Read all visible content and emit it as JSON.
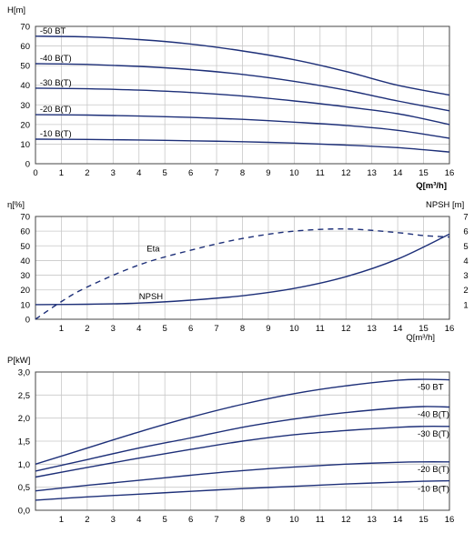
{
  "chart_data": [
    {
      "type": "line",
      "xlabel": "Q[m³/h]",
      "ylabel": "H[m]",
      "xlim": [
        0,
        16
      ],
      "ylim": [
        0,
        70
      ],
      "xticks": [
        "0",
        "1",
        "2",
        "3",
        "4",
        "5",
        "6",
        "7",
        "8",
        "9",
        "10",
        "11",
        "12",
        "13",
        "14",
        "15",
        "16"
      ],
      "yticks": [
        "0",
        "10",
        "20",
        "30",
        "40",
        "50",
        "60",
        "70"
      ],
      "grid": true,
      "series": [
        {
          "name": "-50 BT",
          "x": [
            0,
            2,
            4,
            6,
            8,
            10,
            12,
            14,
            16
          ],
          "values": [
            65,
            64.6,
            63.3,
            61,
            57.5,
            53,
            47,
            40,
            35
          ]
        },
        {
          "name": "-40 B(T)",
          "x": [
            0,
            2,
            4,
            6,
            8,
            10,
            12,
            14,
            16
          ],
          "values": [
            51,
            50.6,
            49.6,
            48,
            45.5,
            42,
            37.5,
            32,
            27
          ]
        },
        {
          "name": "-30 B(T)",
          "x": [
            0,
            2,
            4,
            6,
            8,
            10,
            12,
            14,
            16
          ],
          "values": [
            38.5,
            38.2,
            37.5,
            36.3,
            34.5,
            32,
            29,
            25.5,
            20
          ]
        },
        {
          "name": "-20 B(T)",
          "x": [
            0,
            2,
            4,
            6,
            8,
            10,
            12,
            14,
            16
          ],
          "values": [
            25,
            24.8,
            24.3,
            23.6,
            22.6,
            21.2,
            19.5,
            17,
            13
          ]
        },
        {
          "name": "-10 B(T)",
          "x": [
            0,
            2,
            4,
            6,
            8,
            10,
            12,
            14,
            16
          ],
          "values": [
            12.5,
            12.4,
            12.1,
            11.7,
            11.2,
            10.5,
            9.5,
            8.2,
            6
          ]
        }
      ]
    },
    {
      "type": "line",
      "xlabel": "Q[m³/h]",
      "ylabel": "η[%]",
      "ylabel_right": "NPSH [m]",
      "xlim": [
        0,
        16
      ],
      "ylim": [
        0,
        70
      ],
      "ylim_right": [
        0,
        7
      ],
      "xticks": [
        "1",
        "2",
        "3",
        "4",
        "5",
        "6",
        "7",
        "8",
        "9",
        "10",
        "11",
        "12",
        "13",
        "14",
        "15",
        "16"
      ],
      "yticks": [
        "0",
        "10",
        "20",
        "30",
        "40",
        "50",
        "60",
        "70"
      ],
      "yticks_right": [
        "1",
        "2",
        "3",
        "4",
        "5",
        "6",
        "7"
      ],
      "grid": true,
      "series": [
        {
          "name": "Eta",
          "style": "dashed",
          "axis": "left",
          "x": [
            0,
            1,
            2,
            4,
            6,
            8,
            10,
            12,
            14,
            15,
            16
          ],
          "values": [
            0,
            12,
            22,
            37,
            47,
            55,
            60,
            61.5,
            59,
            57,
            56
          ]
        },
        {
          "name": "NPSH",
          "style": "solid",
          "axis": "right",
          "x": [
            0,
            2,
            4,
            6,
            8,
            10,
            12,
            14,
            16
          ],
          "values": [
            1,
            1.02,
            1.1,
            1.3,
            1.6,
            2.1,
            2.9,
            4.1,
            5.8
          ]
        }
      ]
    },
    {
      "type": "line",
      "ylabel": "P[kW]",
      "xlim": [
        0,
        16
      ],
      "ylim": [
        0,
        3.0
      ],
      "xticks": [
        "1",
        "2",
        "3",
        "4",
        "5",
        "6",
        "7",
        "8",
        "9",
        "10",
        "11",
        "12",
        "13",
        "14",
        "15",
        "16"
      ],
      "yticks": [
        "0,0",
        "0,5",
        "1,0",
        "1,5",
        "2,0",
        "2,5",
        "3,0"
      ],
      "grid": true,
      "series": [
        {
          "name": "-50 BT",
          "x": [
            0,
            2,
            4,
            6,
            8,
            10,
            12,
            14,
            15,
            16
          ],
          "values": [
            1.0,
            1.35,
            1.7,
            2.02,
            2.3,
            2.53,
            2.7,
            2.82,
            2.84,
            2.83
          ]
        },
        {
          "name": "-40 B(T)",
          "x": [
            0,
            2,
            4,
            6,
            8,
            10,
            12,
            14,
            15,
            16
          ],
          "values": [
            0.85,
            1.1,
            1.35,
            1.57,
            1.8,
            1.98,
            2.12,
            2.22,
            2.25,
            2.24
          ]
        },
        {
          "name": "-30 B(T)",
          "x": [
            0,
            2,
            4,
            6,
            8,
            10,
            12,
            14,
            15,
            16
          ],
          "values": [
            0.72,
            0.93,
            1.13,
            1.32,
            1.5,
            1.64,
            1.73,
            1.8,
            1.82,
            1.82
          ]
        },
        {
          "name": "-20 B(T)",
          "x": [
            0,
            2,
            4,
            6,
            8,
            10,
            12,
            14,
            15,
            16
          ],
          "values": [
            0.42,
            0.54,
            0.65,
            0.76,
            0.86,
            0.94,
            1.0,
            1.04,
            1.05,
            1.05
          ]
        },
        {
          "name": "-10 B(T)",
          "x": [
            0,
            2,
            4,
            6,
            8,
            10,
            12,
            14,
            15,
            16
          ],
          "values": [
            0.22,
            0.29,
            0.35,
            0.41,
            0.47,
            0.52,
            0.57,
            0.61,
            0.63,
            0.64
          ]
        }
      ]
    }
  ]
}
